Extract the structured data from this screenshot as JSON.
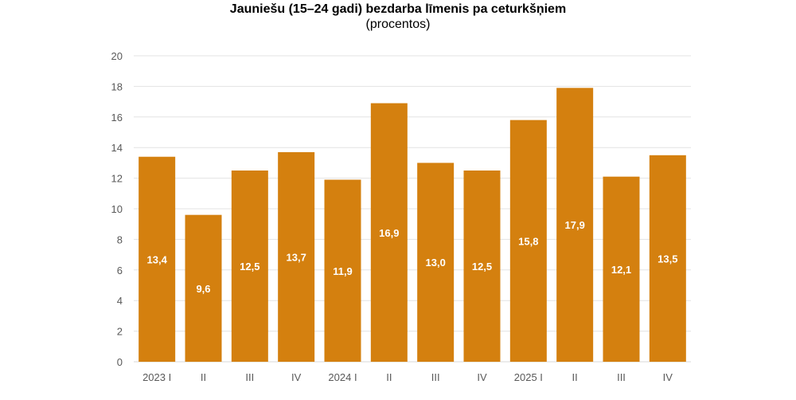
{
  "chart_data": {
    "type": "bar",
    "title": "Jauniešu (15–24 gadi) bezdarba līmenis pa ceturkšņiem",
    "subtitle": "(procentos)",
    "xlabel": "",
    "ylabel": "",
    "categories": [
      "2023 I",
      "II",
      "III",
      "IV",
      "2024 I",
      "II",
      "III",
      "IV",
      "2025 I",
      "II",
      "III",
      "IV"
    ],
    "values": [
      13.4,
      9.6,
      12.5,
      13.7,
      11.9,
      16.9,
      13.0,
      12.5,
      15.8,
      17.9,
      12.1,
      13.5
    ],
    "data_labels": [
      "13,4",
      "9,6",
      "12,5",
      "13,7",
      "11,9",
      "16,9",
      "13,0",
      "12,5",
      "15,8",
      "17,9",
      "12,1",
      "13,5"
    ],
    "ylim": [
      0,
      20
    ],
    "yticks": [
      0,
      2,
      4,
      6,
      8,
      10,
      12,
      14,
      16,
      18,
      20
    ],
    "grid": true,
    "bar_color": "#D4800F"
  }
}
